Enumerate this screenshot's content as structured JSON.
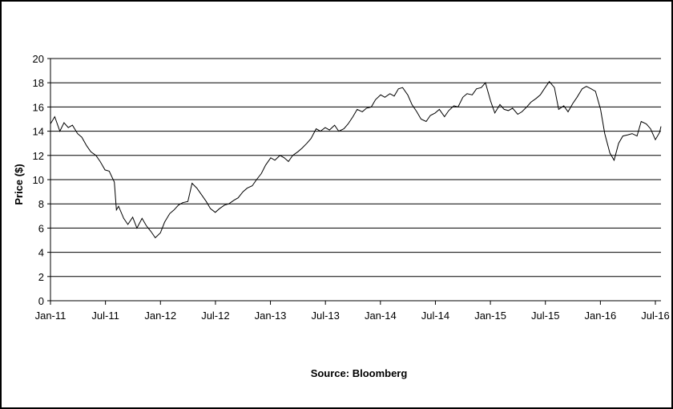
{
  "chart_data": {
    "type": "line",
    "title": "",
    "xlabel": "",
    "ylabel": "Price ($)",
    "ylim": [
      0,
      20
    ],
    "yticks": [
      "0",
      "2",
      "4",
      "6",
      "8",
      "10",
      "12",
      "14",
      "16",
      "18",
      "20"
    ],
    "xticks": [
      "Jan-11",
      "Jul-11",
      "Jan-12",
      "Jul-12",
      "Jan-13",
      "Jul-13",
      "Jan-14",
      "Jul-14",
      "Jan-15",
      "Jul-15",
      "Jan-16",
      "Jul-16"
    ],
    "grid": "horizontal",
    "line_color": "#000000",
    "source": "Source: Bloomberg",
    "series": [
      {
        "x": [
          "2011-01-01",
          "2011-01-15",
          "2011-02-01",
          "2011-02-15",
          "2011-03-01",
          "2011-03-15",
          "2011-04-01",
          "2011-04-15",
          "2011-05-01",
          "2011-05-15",
          "2011-06-01",
          "2011-06-15",
          "2011-07-01",
          "2011-07-15",
          "2011-08-01",
          "2011-08-08",
          "2011-08-15",
          "2011-09-01",
          "2011-09-15",
          "2011-10-01",
          "2011-10-15",
          "2011-11-01",
          "2011-11-15",
          "2011-12-01",
          "2011-12-15",
          "2012-01-01",
          "2012-01-15",
          "2012-02-01",
          "2012-02-15",
          "2012-03-01",
          "2012-03-15",
          "2012-04-01",
          "2012-04-15",
          "2012-05-01",
          "2012-05-15",
          "2012-06-01",
          "2012-06-15",
          "2012-07-01",
          "2012-07-15",
          "2012-08-01",
          "2012-08-15",
          "2012-09-01",
          "2012-09-15",
          "2012-10-01",
          "2012-10-15",
          "2012-11-01",
          "2012-11-15",
          "2012-12-01",
          "2012-12-15",
          "2013-01-01",
          "2013-01-15",
          "2013-02-01",
          "2013-02-15",
          "2013-03-01",
          "2013-03-15",
          "2013-04-01",
          "2013-04-15",
          "2013-05-01",
          "2013-05-15",
          "2013-06-01",
          "2013-06-15",
          "2013-07-01",
          "2013-07-15",
          "2013-08-01",
          "2013-08-15",
          "2013-09-01",
          "2013-09-15",
          "2013-10-01",
          "2013-10-15",
          "2013-11-01",
          "2013-11-15",
          "2013-12-01",
          "2013-12-15",
          "2014-01-01",
          "2014-01-15",
          "2014-02-01",
          "2014-02-15",
          "2014-03-01",
          "2014-03-15",
          "2014-04-01",
          "2014-04-15",
          "2014-05-01",
          "2014-05-15",
          "2014-06-01",
          "2014-06-15",
          "2014-07-01",
          "2014-07-15",
          "2014-08-01",
          "2014-08-15",
          "2014-09-01",
          "2014-09-15",
          "2014-10-01",
          "2014-10-15",
          "2014-11-01",
          "2014-11-15",
          "2014-12-01",
          "2014-12-15",
          "2015-01-01",
          "2015-01-15",
          "2015-02-01",
          "2015-02-15",
          "2015-03-01",
          "2015-03-15",
          "2015-04-01",
          "2015-04-15",
          "2015-05-01",
          "2015-05-15",
          "2015-06-01",
          "2015-06-15",
          "2015-07-01",
          "2015-07-15",
          "2015-08-01",
          "2015-08-15",
          "2015-09-01",
          "2015-09-15",
          "2015-10-01",
          "2015-10-15",
          "2015-11-01",
          "2015-11-15",
          "2015-12-01",
          "2015-12-15",
          "2016-01-01",
          "2016-01-15",
          "2016-02-01",
          "2016-02-15",
          "2016-03-01",
          "2016-03-15",
          "2016-04-01",
          "2016-04-15",
          "2016-05-01",
          "2016-05-15",
          "2016-06-01",
          "2016-06-15",
          "2016-07-01",
          "2016-07-15",
          "2016-08-01"
        ],
        "values": [
          14.6,
          15.2,
          14.0,
          14.7,
          14.3,
          14.5,
          13.8,
          13.5,
          12.8,
          12.3,
          12.0,
          11.5,
          10.8,
          10.7,
          9.8,
          7.5,
          7.8,
          6.8,
          6.3,
          6.9,
          6.0,
          6.8,
          6.2,
          5.7,
          5.2,
          5.6,
          6.5,
          7.2,
          7.5,
          7.9,
          8.1,
          8.2,
          9.7,
          9.3,
          8.8,
          8.2,
          7.6,
          7.3,
          7.6,
          7.9,
          8.0,
          8.3,
          8.5,
          9.0,
          9.3,
          9.5,
          10.0,
          10.5,
          11.2,
          11.8,
          11.6,
          12.0,
          11.8,
          11.5,
          12.0,
          12.3,
          12.6,
          13.0,
          13.4,
          14.2,
          14.0,
          14.3,
          14.1,
          14.5,
          14.0,
          14.2,
          14.6,
          15.2,
          15.8,
          15.6,
          15.9,
          16.0,
          16.6,
          17.0,
          16.8,
          17.1,
          16.9,
          17.5,
          17.6,
          17.0,
          16.2,
          15.6,
          15.0,
          14.8,
          15.3,
          15.5,
          15.8,
          15.2,
          15.7,
          16.1,
          16.0,
          16.8,
          17.1,
          17.0,
          17.5,
          17.6,
          18.0,
          16.5,
          15.5,
          16.2,
          15.8,
          15.7,
          15.9,
          15.4,
          15.6,
          16.0,
          16.4,
          16.7,
          17.0,
          17.6,
          18.1,
          17.6,
          15.8,
          16.1,
          15.6,
          16.3,
          16.8,
          17.5,
          17.7,
          17.5,
          17.3,
          15.8,
          13.8,
          12.2,
          11.6,
          13.0,
          13.6,
          13.7,
          13.8,
          13.6,
          14.8,
          14.6,
          14.2,
          13.3,
          13.9,
          14.4
        ]
      }
    ]
  }
}
